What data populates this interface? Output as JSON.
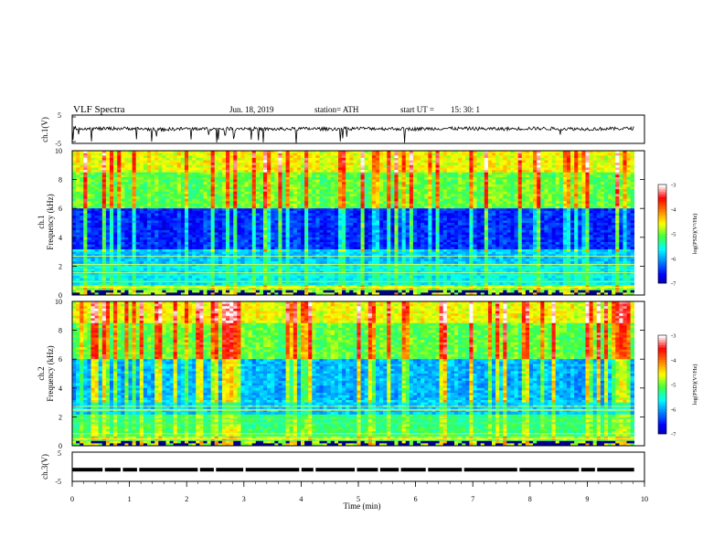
{
  "header": {
    "title": "VLF  Spectra",
    "date": "Jun. 18, 2019",
    "station": "station= ATH",
    "start_label": "start  UT  =",
    "start_time": "15: 30: 1"
  },
  "chart_data": [
    {
      "type": "line",
      "ylabel": "ch.1(V)",
      "ylim": [
        -5,
        5
      ],
      "y_ticks": [
        "5",
        "-5"
      ],
      "description_of_values": "noisy waveform centered near 0 V with sparse negative spikes",
      "x": [
        0,
        0.5,
        1,
        1.5,
        2,
        2.5,
        3,
        3.5,
        4,
        4.5,
        5,
        5.5,
        6,
        6.5,
        7,
        7.5,
        8,
        8.5,
        9,
        9.5,
        9.8
      ],
      "y": [
        0.4,
        0.2,
        0.3,
        -0.1,
        0.2,
        0.1,
        0.3,
        0.0,
        0.2,
        0.1,
        0.3,
        0.2,
        0.1,
        0.3,
        0.2,
        0.1,
        0.3,
        0.2,
        0.1,
        0.2,
        0.3
      ]
    },
    {
      "type": "heatmap",
      "ylabel_top": "ch.1",
      "ylabel": "Frequency  (kHz)",
      "ylim": [
        0,
        10
      ],
      "y_ticks": [
        "0",
        "2",
        "4",
        "6",
        "8",
        "10"
      ],
      "colorbar_label": "log(PSD)(V²/Hz)",
      "colorbar_ticks": [
        "-3",
        "-4",
        "-5",
        "-6",
        "-7"
      ],
      "clim": [
        -7,
        -3
      ]
    },
    {
      "type": "heatmap",
      "ylabel_top": "ch.2",
      "ylabel": "Frequency  (kHz)",
      "ylim": [
        0,
        10
      ],
      "y_ticks": [
        "0",
        "2",
        "4",
        "6",
        "8",
        "10"
      ],
      "colorbar_label": "log(PSD)(V²/Hz)",
      "colorbar_ticks": [
        "-3",
        "-4",
        "-5",
        "-6",
        "-7"
      ],
      "clim": [
        -7,
        -3
      ]
    },
    {
      "type": "line",
      "ylabel": "ch.3(V)",
      "ylim": [
        -5,
        5
      ],
      "y_ticks": [
        "5",
        "-5"
      ],
      "description_of_values": "constant level near -1 V with brief gaps",
      "level": -1
    }
  ],
  "xaxis": {
    "label": "Time  (min)",
    "ticks": [
      "0",
      "1",
      "2",
      "3",
      "4",
      "5",
      "6",
      "7",
      "8",
      "9",
      "10"
    ],
    "xlim": [
      0,
      10
    ]
  },
  "colors": {
    "colormap": [
      "#00008a",
      "#0000ff",
      "#0080ff",
      "#00ffff",
      "#40ff40",
      "#ffff00",
      "#ff8000",
      "#ff0000",
      "#ffffff"
    ],
    "axes": "#000000"
  }
}
